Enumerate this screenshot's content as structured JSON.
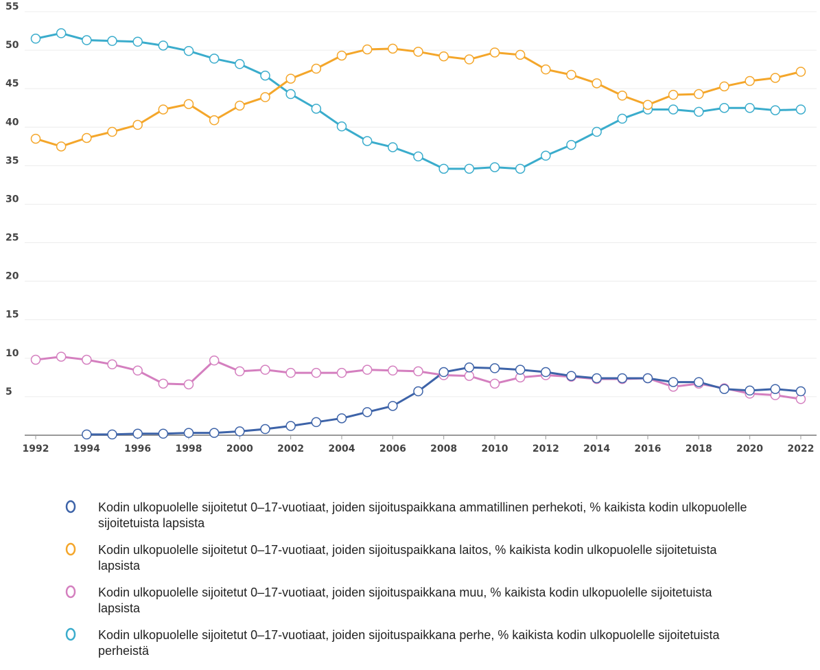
{
  "chart_data": {
    "type": "line",
    "x": [
      1992,
      1993,
      1994,
      1995,
      1996,
      1997,
      1998,
      1999,
      2000,
      2001,
      2002,
      2003,
      2004,
      2005,
      2006,
      2007,
      2008,
      2009,
      2010,
      2011,
      2012,
      2013,
      2014,
      2015,
      2016,
      2017,
      2018,
      2019,
      2020,
      2021,
      2022
    ],
    "xlim": [
      1992,
      2022
    ],
    "xticks": [
      1992,
      1994,
      1996,
      1998,
      2000,
      2002,
      2004,
      2006,
      2008,
      2010,
      2012,
      2014,
      2016,
      2018,
      2020,
      2022
    ],
    "ylim": [
      0,
      55
    ],
    "yticks": [
      5,
      10,
      15,
      20,
      25,
      30,
      35,
      40,
      45,
      50,
      55
    ],
    "grid": true,
    "series": [
      {
        "name": "Kodin ulkopuolelle sijoitetut 0–17-vuotiaat, joiden sijoituspaikkana ammatillinen perhekoti, % kaikista kodin ulkopuolelle sijoitetuista lapsista",
        "color": "#3d63a8",
        "values": [
          null,
          null,
          0.1,
          0.1,
          0.2,
          0.2,
          0.3,
          0.3,
          0.5,
          0.8,
          1.2,
          1.7,
          2.2,
          3.0,
          3.8,
          5.7,
          8.2,
          8.8,
          8.7,
          8.5,
          8.2,
          7.7,
          7.4,
          7.4,
          7.4,
          6.9,
          6.9,
          6.0,
          5.8,
          6.0,
          5.7
        ]
      },
      {
        "name": "Kodin ulkopuolelle sijoitetut 0–17-vuotiaat, joiden sijoituspaikkana laitos, % kaikista kodin ulkopuolelle sijoitetuista lapsista",
        "color": "#f4a62a",
        "values": [
          38.5,
          37.5,
          38.6,
          39.4,
          40.3,
          42.3,
          43.0,
          40.9,
          42.8,
          43.9,
          46.3,
          47.6,
          49.3,
          50.1,
          50.2,
          49.8,
          49.2,
          48.8,
          49.7,
          49.4,
          47.5,
          46.8,
          45.7,
          44.1,
          42.9,
          44.2,
          44.3,
          45.3,
          46.0,
          46.4,
          47.2
        ]
      },
      {
        "name": "Kodin ulkopuolelle sijoitetut 0–17-vuotiaat, joiden sijoituspaikkana muu, % kaikista kodin ulkopuolelle sijoitetuista lapsista",
        "color": "#d47fbf",
        "values": [
          9.8,
          10.2,
          9.8,
          9.2,
          8.4,
          6.7,
          6.6,
          9.7,
          8.3,
          8.5,
          8.1,
          8.1,
          8.1,
          8.5,
          8.4,
          8.3,
          7.8,
          7.7,
          6.7,
          7.5,
          7.8,
          7.6,
          7.3,
          7.3,
          7.4,
          6.3,
          6.7,
          6.1,
          5.4,
          5.2,
          4.7
        ]
      },
      {
        "name": "Kodin ulkopuolelle sijoitetut 0–17-vuotiaat, joiden sijoituspaikkana perhe, % kaikista kodin ulkopuolelle sijoitetuista perheistä",
        "color": "#3aaccc",
        "values": [
          51.5,
          52.2,
          51.3,
          51.2,
          51.1,
          50.6,
          49.9,
          48.9,
          48.2,
          46.7,
          44.3,
          42.4,
          40.1,
          38.2,
          37.4,
          36.2,
          34.6,
          34.6,
          34.8,
          34.6,
          36.3,
          37.7,
          39.4,
          41.1,
          42.3,
          42.3,
          42.0,
          42.5,
          42.5,
          42.2,
          42.3
        ]
      }
    ]
  }
}
